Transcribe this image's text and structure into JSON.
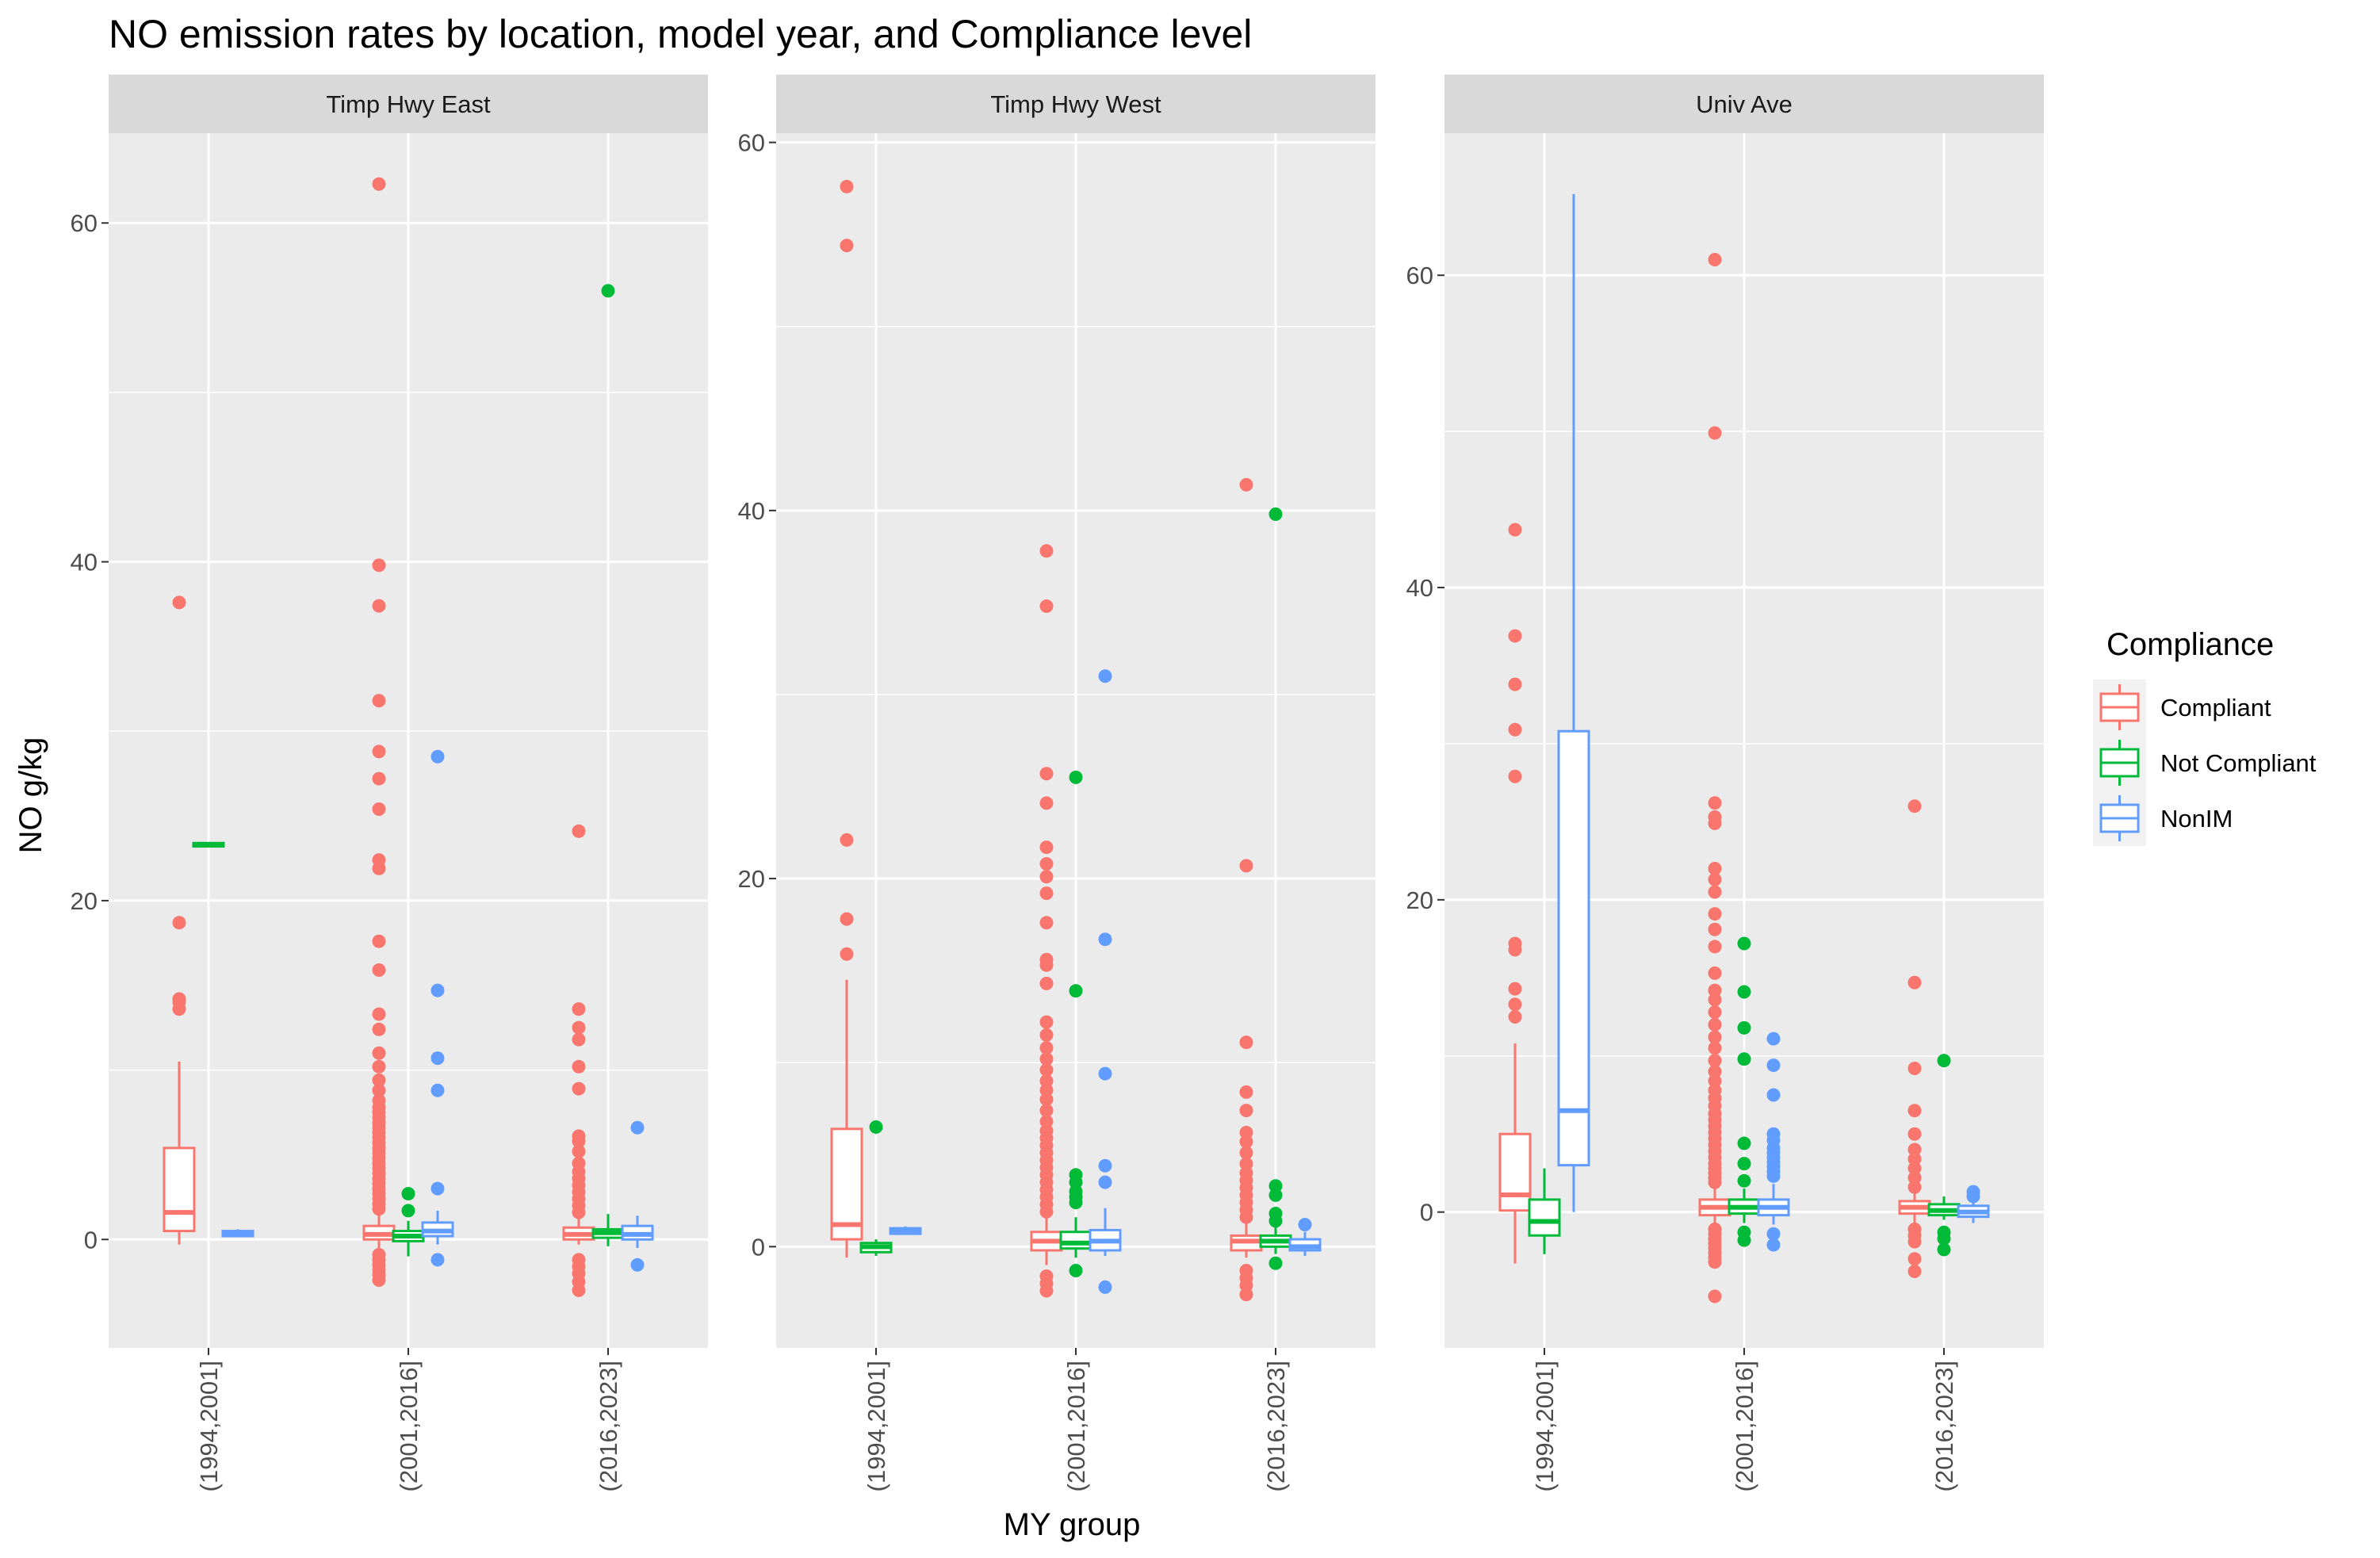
{
  "chart_data": {
    "type": "boxplot",
    "title": "NO emission rates by location, model year, and Compliance level",
    "xlabel": "MY group",
    "ylabel": "NO g/kg",
    "categories": [
      "(1994,2001]",
      "(2001,2016]",
      "(2016,2023]"
    ],
    "legend": {
      "title": "Compliance",
      "position": "right",
      "entries": [
        "Compliant",
        "Not Compliant",
        "NonIM"
      ]
    },
    "colors": {
      "Compliant": "#F8766D",
      "Not Compliant": "#00BA38",
      "NonIM": "#619CFF"
    },
    "facets": [
      {
        "name": "Timp Hwy East",
        "ylim": [
          -6.4,
          65.3
        ],
        "yticks": [
          0,
          20,
          40,
          60
        ],
        "boxes": [
          {
            "category": "(1994,2001]",
            "group": "Compliant",
            "min": -0.3,
            "q1": 0.5,
            "median": 1.6,
            "q3": 5.4,
            "max": 10.5,
            "outliers": [
              13.6,
              14.0,
              14.2,
              18.7,
              37.6
            ]
          },
          {
            "category": "(1994,2001]",
            "group": "Not Compliant",
            "min": 23.2,
            "q1": 23.2,
            "median": 23.3,
            "q3": 23.4,
            "max": 23.4,
            "outliers": []
          },
          {
            "category": "(1994,2001]",
            "group": "NonIM",
            "min": 0.2,
            "q1": 0.2,
            "median": 0.3,
            "q3": 0.5,
            "max": 0.6,
            "outliers": []
          },
          {
            "category": "(2001,2016]",
            "group": "Compliant",
            "min": -0.6,
            "q1": 0.0,
            "median": 0.3,
            "q3": 0.8,
            "max": 1.5,
            "outliers": [
              -2.4,
              -2.1,
              -1.8,
              -1.5,
              -1.2,
              -0.9,
              1.8,
              2.1,
              2.4,
              2.7,
              3.0,
              3.3,
              3.6,
              3.9,
              4.2,
              4.5,
              4.8,
              5.1,
              5.4,
              5.7,
              6.0,
              6.3,
              6.6,
              6.9,
              7.2,
              7.5,
              7.8,
              8.2,
              8.8,
              9.4,
              10.2,
              11.0,
              12.4,
              13.3,
              15.9,
              17.6,
              21.9,
              22.4,
              25.4,
              27.2,
              28.8,
              31.8,
              37.4,
              39.8,
              62.3
            ]
          },
          {
            "category": "(2001,2016]",
            "group": "Not Compliant",
            "min": -1.0,
            "q1": -0.1,
            "median": 0.2,
            "q3": 0.5,
            "max": 1.1,
            "outliers": [
              1.7,
              2.7
            ]
          },
          {
            "category": "(2001,2016]",
            "group": "NonIM",
            "min": -0.3,
            "q1": 0.2,
            "median": 0.5,
            "q3": 1.0,
            "max": 1.7,
            "outliers": [
              -1.2,
              3.0,
              8.8,
              10.7,
              14.7,
              28.5
            ]
          },
          {
            "category": "(2016,2023]",
            "group": "Compliant",
            "min": -0.3,
            "q1": 0.0,
            "median": 0.3,
            "q3": 0.7,
            "max": 1.3,
            "outliers": [
              -3.0,
              -2.5,
              -2.0,
              -1.6,
              -1.2,
              1.6,
              2.0,
              2.4,
              2.8,
              3.2,
              3.6,
              4.0,
              4.5,
              5.2,
              5.8,
              6.1,
              8.9,
              10.2,
              11.8,
              12.5,
              13.6,
              24.1
            ]
          },
          {
            "category": "(2016,2023]",
            "group": "Not Compliant",
            "min": -0.4,
            "q1": 0.1,
            "median": 0.4,
            "q3": 0.6,
            "max": 1.5,
            "outliers": [
              56.0
            ]
          },
          {
            "category": "(2016,2023]",
            "group": "NonIM",
            "min": -0.5,
            "q1": 0.0,
            "median": 0.3,
            "q3": 0.8,
            "max": 1.4,
            "outliers": [
              -1.5,
              6.6
            ]
          }
        ]
      },
      {
        "name": "Timp Hwy West",
        "ylim": [
          -5.5,
          60.5
        ],
        "yticks": [
          0,
          20,
          40,
          60
        ],
        "boxes": [
          {
            "category": "(1994,2001]",
            "group": "Compliant",
            "min": -0.6,
            "q1": 0.4,
            "median": 1.2,
            "q3": 6.4,
            "max": 14.5,
            "outliers": [
              15.9,
              17.8,
              22.1,
              54.4,
              57.6
            ]
          },
          {
            "category": "(1994,2001]",
            "group": "Not Compliant",
            "min": -0.5,
            "q1": -0.3,
            "median": 0.0,
            "q3": 0.2,
            "max": 0.4,
            "outliers": [
              6.5
            ]
          },
          {
            "category": "(1994,2001]",
            "group": "NonIM",
            "min": 0.7,
            "q1": 0.7,
            "median": 0.9,
            "q3": 1.0,
            "max": 1.1,
            "outliers": []
          },
          {
            "category": "(2001,2016]",
            "group": "Compliant",
            "min": -1.0,
            "q1": -0.2,
            "median": 0.3,
            "q3": 0.8,
            "max": 1.6,
            "outliers": [
              -2.4,
              -2.0,
              -1.6,
              1.9,
              2.3,
              2.7,
              3.1,
              3.5,
              3.9,
              4.3,
              4.7,
              5.1,
              5.5,
              5.9,
              6.3,
              6.8,
              7.4,
              8.0,
              8.5,
              9.0,
              9.6,
              10.2,
              10.8,
              11.5,
              12.2,
              14.3,
              15.3,
              15.6,
              17.6,
              19.2,
              20.1,
              20.8,
              21.7,
              24.1,
              25.7,
              34.8,
              37.8
            ]
          },
          {
            "category": "(2001,2016]",
            "group": "Not Compliant",
            "min": -0.6,
            "q1": -0.1,
            "median": 0.2,
            "q3": 0.8,
            "max": 1.6,
            "outliers": [
              -1.3,
              2.4,
              2.7,
              3.0,
              3.5,
              3.9,
              13.9,
              25.5
            ]
          },
          {
            "category": "(2001,2016]",
            "group": "NonIM",
            "min": -0.5,
            "q1": -0.2,
            "median": 0.3,
            "q3": 0.9,
            "max": 2.1,
            "outliers": [
              -2.2,
              3.5,
              4.4,
              9.4,
              16.7,
              31.0
            ]
          },
          {
            "category": "(2016,2023]",
            "group": "Compliant",
            "min": -0.6,
            "q1": -0.2,
            "median": 0.3,
            "q3": 0.6,
            "max": 1.3,
            "outliers": [
              -2.6,
              -2.1,
              -1.7,
              -1.3,
              1.6,
              2.0,
              2.4,
              2.8,
              3.2,
              3.6,
              4.0,
              4.5,
              5.1,
              5.7,
              6.2,
              7.4,
              8.4,
              11.1,
              20.7,
              41.4
            ]
          },
          {
            "category": "(2016,2023]",
            "group": "Not Compliant",
            "min": -0.4,
            "q1": 0.0,
            "median": 0.3,
            "q3": 0.6,
            "max": 1.1,
            "outliers": [
              -0.9,
              1.4,
              1.8,
              2.8,
              3.3,
              39.8
            ]
          },
          {
            "category": "(2016,2023]",
            "group": "NonIM",
            "min": -0.5,
            "q1": -0.2,
            "median": 0.0,
            "q3": 0.4,
            "max": 0.8,
            "outliers": [
              1.2
            ]
          }
        ]
      },
      {
        "name": "Univ Ave",
        "ylim": [
          -8.7,
          69.1
        ],
        "yticks": [
          0,
          20,
          40,
          60
        ],
        "boxes": [
          {
            "category": "(1994,2001]",
            "group": "Compliant",
            "min": -3.3,
            "q1": 0.1,
            "median": 1.1,
            "q3": 5.0,
            "max": 10.8,
            "outliers": [
              12.5,
              13.3,
              14.3,
              16.8,
              17.2,
              27.9,
              30.9,
              33.8,
              36.9,
              43.7
            ]
          },
          {
            "category": "(1994,2001]",
            "group": "Not Compliant",
            "min": -2.7,
            "q1": -1.5,
            "median": -0.6,
            "q3": 0.8,
            "max": 2.8,
            "outliers": []
          },
          {
            "category": "(1994,2001]",
            "group": "NonIM",
            "min": 0.0,
            "q1": 3.0,
            "median": 6.5,
            "q3": 30.8,
            "max": 65.2,
            "outliers": []
          },
          {
            "category": "(2001,2016]",
            "group": "Compliant",
            "min": -0.8,
            "q1": -0.2,
            "median": 0.3,
            "q3": 0.8,
            "max": 1.6,
            "outliers": [
              -5.4,
              -3.2,
              -2.9,
              -2.6,
              -2.3,
              -2.0,
              -1.7,
              -1.4,
              -1.1,
              1.9,
              2.2,
              2.5,
              2.8,
              3.1,
              3.5,
              3.9,
              4.3,
              4.7,
              5.1,
              5.5,
              5.9,
              6.3,
              6.8,
              7.3,
              7.8,
              8.4,
              9.0,
              9.7,
              10.5,
              11.2,
              12.0,
              12.8,
              13.6,
              14.2,
              15.3,
              17.0,
              18.1,
              19.1,
              20.5,
              21.3,
              22.0,
              24.9,
              25.3,
              26.2,
              49.9,
              61.0
            ]
          },
          {
            "category": "(2001,2016]",
            "group": "Not Compliant",
            "min": -0.7,
            "q1": -0.1,
            "median": 0.3,
            "q3": 0.8,
            "max": 1.5,
            "outliers": [
              -1.8,
              -1.3,
              2.0,
              3.1,
              4.4,
              9.8,
              11.8,
              14.1,
              17.2
            ]
          },
          {
            "category": "(2001,2016]",
            "group": "NonIM",
            "min": -0.8,
            "q1": -0.2,
            "median": 0.3,
            "q3": 0.8,
            "max": 1.8,
            "outliers": [
              -2.1,
              -1.4,
              2.3,
              2.6,
              2.9,
              3.2,
              3.5,
              3.8,
              4.1,
              4.6,
              5.0,
              7.5,
              9.4,
              11.1
            ]
          },
          {
            "category": "(2016,2023]",
            "group": "Compliant",
            "min": -0.8,
            "q1": -0.1,
            "median": 0.3,
            "q3": 0.7,
            "max": 1.3,
            "outliers": [
              -3.8,
              -3.0,
              -1.9,
              -1.5,
              -1.1,
              1.6,
              2.2,
              2.8,
              3.4,
              4.0,
              5.0,
              6.5,
              9.2,
              14.7,
              26.0
            ]
          },
          {
            "category": "(2016,2023]",
            "group": "Not Compliant",
            "min": -0.5,
            "q1": -0.2,
            "median": 0.1,
            "q3": 0.5,
            "max": 1.0,
            "outliers": [
              -2.4,
              -1.7,
              -1.3,
              9.7
            ]
          },
          {
            "category": "(2016,2023]",
            "group": "NonIM",
            "min": -0.7,
            "q1": -0.3,
            "median": 0.0,
            "q3": 0.4,
            "max": 0.9,
            "outliers": [
              1.0,
              1.3
            ]
          }
        ]
      }
    ]
  }
}
